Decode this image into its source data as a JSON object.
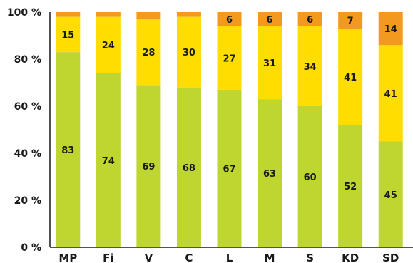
{
  "chart_data": {
    "type": "bar",
    "stacked": true,
    "percent_axis": true,
    "categories": [
      "MP",
      "Fi",
      "V",
      "C",
      "L",
      "M",
      "S",
      "KD",
      "SD"
    ],
    "series": [
      {
        "values": [
          83,
          74,
          69,
          68,
          67,
          63,
          60,
          52,
          45
        ],
        "color": "#bfd630"
      },
      {
        "values": [
          15,
          24,
          28,
          30,
          27,
          31,
          34,
          41,
          41
        ],
        "color": "#ffdd00"
      },
      {
        "values": [
          2,
          2,
          3,
          2,
          6,
          6,
          6,
          7,
          14
        ],
        "color": "#f39a1e"
      }
    ],
    "data_labels": [
      [
        "83",
        "74",
        "69",
        "68",
        "67",
        "63",
        "60",
        "52",
        "45"
      ],
      [
        "15",
        "24",
        "28",
        "30",
        "27",
        "31",
        "34",
        "41",
        "41"
      ],
      [
        "",
        "",
        "",
        "",
        "6",
        "6",
        "6",
        "7",
        "14"
      ]
    ],
    "yticks": [
      "0 %",
      "20 %",
      "40 %",
      "60 %",
      "80 %",
      "100 %"
    ],
    "ylim": [
      0,
      100
    ],
    "grid": false,
    "legend": "none",
    "title": "",
    "xlabel": "",
    "ylabel": ""
  }
}
